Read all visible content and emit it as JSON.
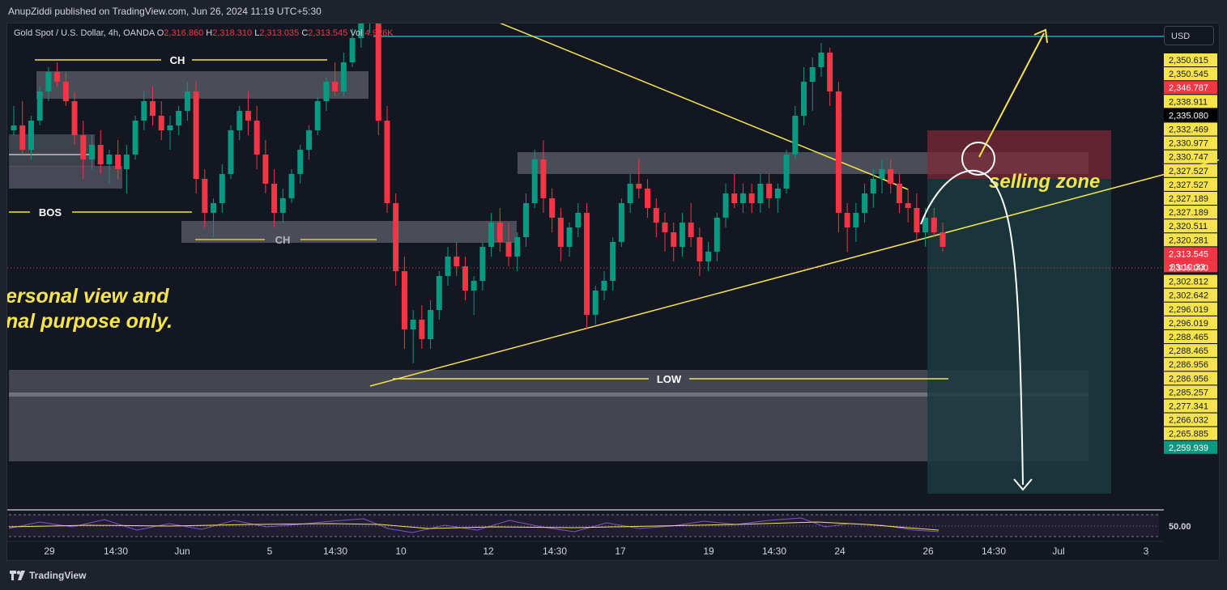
{
  "header": {
    "publisher_line": "AnupZiddi published on TradingView.com, Jun 26, 2024 11:19 UTC+5:30"
  },
  "legend": {
    "symbol": "Gold Spot / U.S. Dollar, 4h, OANDA",
    "o_label": "O",
    "o_value": "2,316.860",
    "h_label": "H",
    "h_value": "2,318.310",
    "l_label": "L",
    "l_value": "2,313.035",
    "c_label": "C",
    "c_value": "2,313.545",
    "vol_label": "Vol",
    "vol_value": "4.926K"
  },
  "currency_button": "USD",
  "annotations": {
    "ch_top": "CH",
    "ch_mid": "CH",
    "bos": "BOS",
    "low": "LOW",
    "selling_zone": "selling zone",
    "disclaimer_line1": "ersonal view and",
    "disclaimer_line2": "nal purpose only."
  },
  "chart_data": {
    "type": "candlestick",
    "symbol": "XAUUSD",
    "timeframe": "4h",
    "x_ticks": [
      "29",
      "14:30",
      "Jun",
      "5",
      "14:30",
      "10",
      "12",
      "14:30",
      "17",
      "19",
      "14:30",
      "24",
      "26",
      "14:30",
      "Jul",
      "3"
    ],
    "y_range": [
      2257,
      2357
    ],
    "price_labels": [
      {
        "value": "2,350.615",
        "style": "yellow"
      },
      {
        "value": "2,350.545",
        "style": "yellow"
      },
      {
        "value": "2,346.787",
        "style": "red"
      },
      {
        "value": "2,338.911",
        "style": "yellow"
      },
      {
        "value": "2,335.080",
        "style": "black"
      },
      {
        "value": "2,332.469",
        "style": "yellow"
      },
      {
        "value": "2,330.977",
        "style": "yellow"
      },
      {
        "value": "2,330.747",
        "style": "yellow"
      },
      {
        "value": "2,327.527",
        "style": "yellow"
      },
      {
        "value": "2,327.527",
        "style": "yellow"
      },
      {
        "value": "2,327.189",
        "style": "yellow"
      },
      {
        "value": "2,327.189",
        "style": "yellow"
      },
      {
        "value": "2,320.511",
        "style": "yellow"
      },
      {
        "value": "2,320.281",
        "style": "yellow"
      },
      {
        "value": "2,313.545",
        "style": "red"
      },
      {
        "value": "2,306.000",
        "style": "plain"
      },
      {
        "value": "2,302.812",
        "style": "yellow"
      },
      {
        "value": "2,302.642",
        "style": "yellow"
      },
      {
        "value": "2,296.019",
        "style": "yellow"
      },
      {
        "value": "2,296.019",
        "style": "yellow"
      },
      {
        "value": "2,288.465",
        "style": "yellow"
      },
      {
        "value": "2,288.465",
        "style": "yellow"
      },
      {
        "value": "2,286.956",
        "style": "yellow"
      },
      {
        "value": "2,286.956",
        "style": "yellow"
      },
      {
        "value": "2,285.257",
        "style": "yellow"
      },
      {
        "value": "2,277.341",
        "style": "yellow"
      },
      {
        "value": "2,266.032",
        "style": "yellow"
      },
      {
        "value": "2,265.885",
        "style": "yellow"
      },
      {
        "value": "2,259.939",
        "style": "green"
      }
    ],
    "countdown": "03:10:33",
    "rsi_label": "50.00",
    "candles": [
      [
        2335,
        2340,
        2334,
        2336
      ],
      [
        2336,
        2341,
        2330,
        2331
      ],
      [
        2331,
        2338,
        2329,
        2337
      ],
      [
        2337,
        2344,
        2336,
        2343
      ],
      [
        2343,
        2348,
        2341,
        2347
      ],
      [
        2347,
        2349,
        2344,
        2345
      ],
      [
        2345,
        2347,
        2340,
        2341
      ],
      [
        2341,
        2343,
        2332,
        2334
      ],
      [
        2334,
        2337,
        2325,
        2329
      ],
      [
        2329,
        2334,
        2327,
        2332
      ],
      [
        2332,
        2335,
        2326,
        2328
      ],
      [
        2328,
        2331,
        2324,
        2330
      ],
      [
        2330,
        2333,
        2325,
        2327
      ],
      [
        2327,
        2332,
        2322,
        2330
      ],
      [
        2330,
        2338,
        2329,
        2337
      ],
      [
        2337,
        2343,
        2335,
        2341
      ],
      [
        2341,
        2344,
        2336,
        2338
      ],
      [
        2338,
        2341,
        2333,
        2335
      ],
      [
        2335,
        2338,
        2331,
        2336
      ],
      [
        2336,
        2340,
        2334,
        2339
      ],
      [
        2339,
        2345,
        2337,
        2343
      ],
      [
        2343,
        2345,
        2322,
        2325
      ],
      [
        2325,
        2327,
        2315,
        2318
      ],
      [
        2318,
        2321,
        2313,
        2320
      ],
      [
        2320,
        2328,
        2318,
        2326
      ],
      [
        2326,
        2336,
        2325,
        2335
      ],
      [
        2335,
        2340,
        2333,
        2339
      ],
      [
        2339,
        2343,
        2334,
        2337
      ],
      [
        2337,
        2340,
        2327,
        2330
      ],
      [
        2330,
        2333,
        2322,
        2324
      ],
      [
        2324,
        2327,
        2315,
        2318
      ],
      [
        2318,
        2323,
        2316,
        2321
      ],
      [
        2321,
        2327,
        2320,
        2326
      ],
      [
        2326,
        2332,
        2324,
        2331
      ],
      [
        2331,
        2336,
        2329,
        2335
      ],
      [
        2335,
        2342,
        2334,
        2341
      ],
      [
        2341,
        2346,
        2339,
        2345
      ],
      [
        2345,
        2349,
        2342,
        2343
      ],
      [
        2343,
        2351,
        2342,
        2349
      ],
      [
        2349,
        2356,
        2348,
        2354
      ],
      [
        2354,
        2362,
        2352,
        2357
      ],
      [
        2357,
        2368,
        2355,
        2360
      ],
      [
        2360,
        2363,
        2334,
        2337
      ],
      [
        2337,
        2340,
        2318,
        2320
      ],
      [
        2320,
        2322,
        2303,
        2306
      ],
      [
        2306,
        2309,
        2290,
        2294
      ],
      [
        2294,
        2298,
        2287,
        2296
      ],
      [
        2296,
        2299,
        2290,
        2292
      ],
      [
        2292,
        2300,
        2290,
        2298
      ],
      [
        2298,
        2306,
        2296,
        2305
      ],
      [
        2305,
        2311,
        2303,
        2309
      ],
      [
        2309,
        2312,
        2305,
        2307
      ],
      [
        2307,
        2309,
        2300,
        2302
      ],
      [
        2302,
        2305,
        2297,
        2304
      ],
      [
        2304,
        2312,
        2302,
        2311
      ],
      [
        2311,
        2318,
        2309,
        2316
      ],
      [
        2316,
        2319,
        2310,
        2312
      ],
      [
        2312,
        2316,
        2307,
        2309
      ],
      [
        2309,
        2314,
        2306,
        2313
      ],
      [
        2313,
        2322,
        2311,
        2320
      ],
      [
        2320,
        2331,
        2319,
        2329
      ],
      [
        2329,
        2333,
        2318,
        2321
      ],
      [
        2321,
        2323,
        2314,
        2317
      ],
      [
        2317,
        2319,
        2308,
        2311
      ],
      [
        2311,
        2316,
        2309,
        2315
      ],
      [
        2315,
        2320,
        2313,
        2318
      ],
      [
        2318,
        2320,
        2294,
        2297
      ],
      [
        2297,
        2303,
        2295,
        2302
      ],
      [
        2302,
        2306,
        2300,
        2304
      ],
      [
        2304,
        2313,
        2302,
        2312
      ],
      [
        2312,
        2321,
        2311,
        2320
      ],
      [
        2320,
        2326,
        2318,
        2324
      ],
      [
        2324,
        2329,
        2321,
        2323
      ],
      [
        2323,
        2325,
        2317,
        2319
      ],
      [
        2319,
        2321,
        2313,
        2316
      ],
      [
        2316,
        2318,
        2310,
        2314
      ],
      [
        2314,
        2316,
        2308,
        2311
      ],
      [
        2311,
        2318,
        2309,
        2316
      ],
      [
        2316,
        2320,
        2311,
        2313
      ],
      [
        2313,
        2315,
        2305,
        2308
      ],
      [
        2308,
        2312,
        2306,
        2310
      ],
      [
        2310,
        2318,
        2308,
        2317
      ],
      [
        2317,
        2324,
        2315,
        2322
      ],
      [
        2322,
        2326,
        2319,
        2320
      ],
      [
        2320,
        2324,
        2318,
        2322
      ],
      [
        2322,
        2324,
        2318,
        2320
      ],
      [
        2320,
        2326,
        2318,
        2324
      ],
      [
        2324,
        2326,
        2319,
        2321
      ],
      [
        2321,
        2324,
        2318,
        2323
      ],
      [
        2323,
        2331,
        2322,
        2330
      ],
      [
        2330,
        2340,
        2329,
        2338
      ],
      [
        2338,
        2348,
        2336,
        2345
      ],
      [
        2345,
        2350,
        2339,
        2348
      ],
      [
        2348,
        2353,
        2346,
        2351
      ],
      [
        2351,
        2352,
        2340,
        2343
      ],
      [
        2343,
        2345,
        2314,
        2318
      ],
      [
        2318,
        2320,
        2310,
        2315
      ],
      [
        2315,
        2320,
        2312,
        2318
      ],
      [
        2318,
        2324,
        2316,
        2322
      ],
      [
        2322,
        2327,
        2319,
        2325
      ],
      [
        2325,
        2329,
        2322,
        2327
      ],
      [
        2327,
        2329,
        2322,
        2324
      ],
      [
        2324,
        2326,
        2318,
        2320
      ],
      [
        2320,
        2323,
        2316,
        2319
      ],
      [
        2319,
        2322,
        2312,
        2314
      ],
      [
        2314,
        2319,
        2311,
        2317
      ],
      [
        2317,
        2319,
        2313,
        2314
      ],
      [
        2314,
        2316,
        2310,
        2311
      ]
    ]
  }
}
